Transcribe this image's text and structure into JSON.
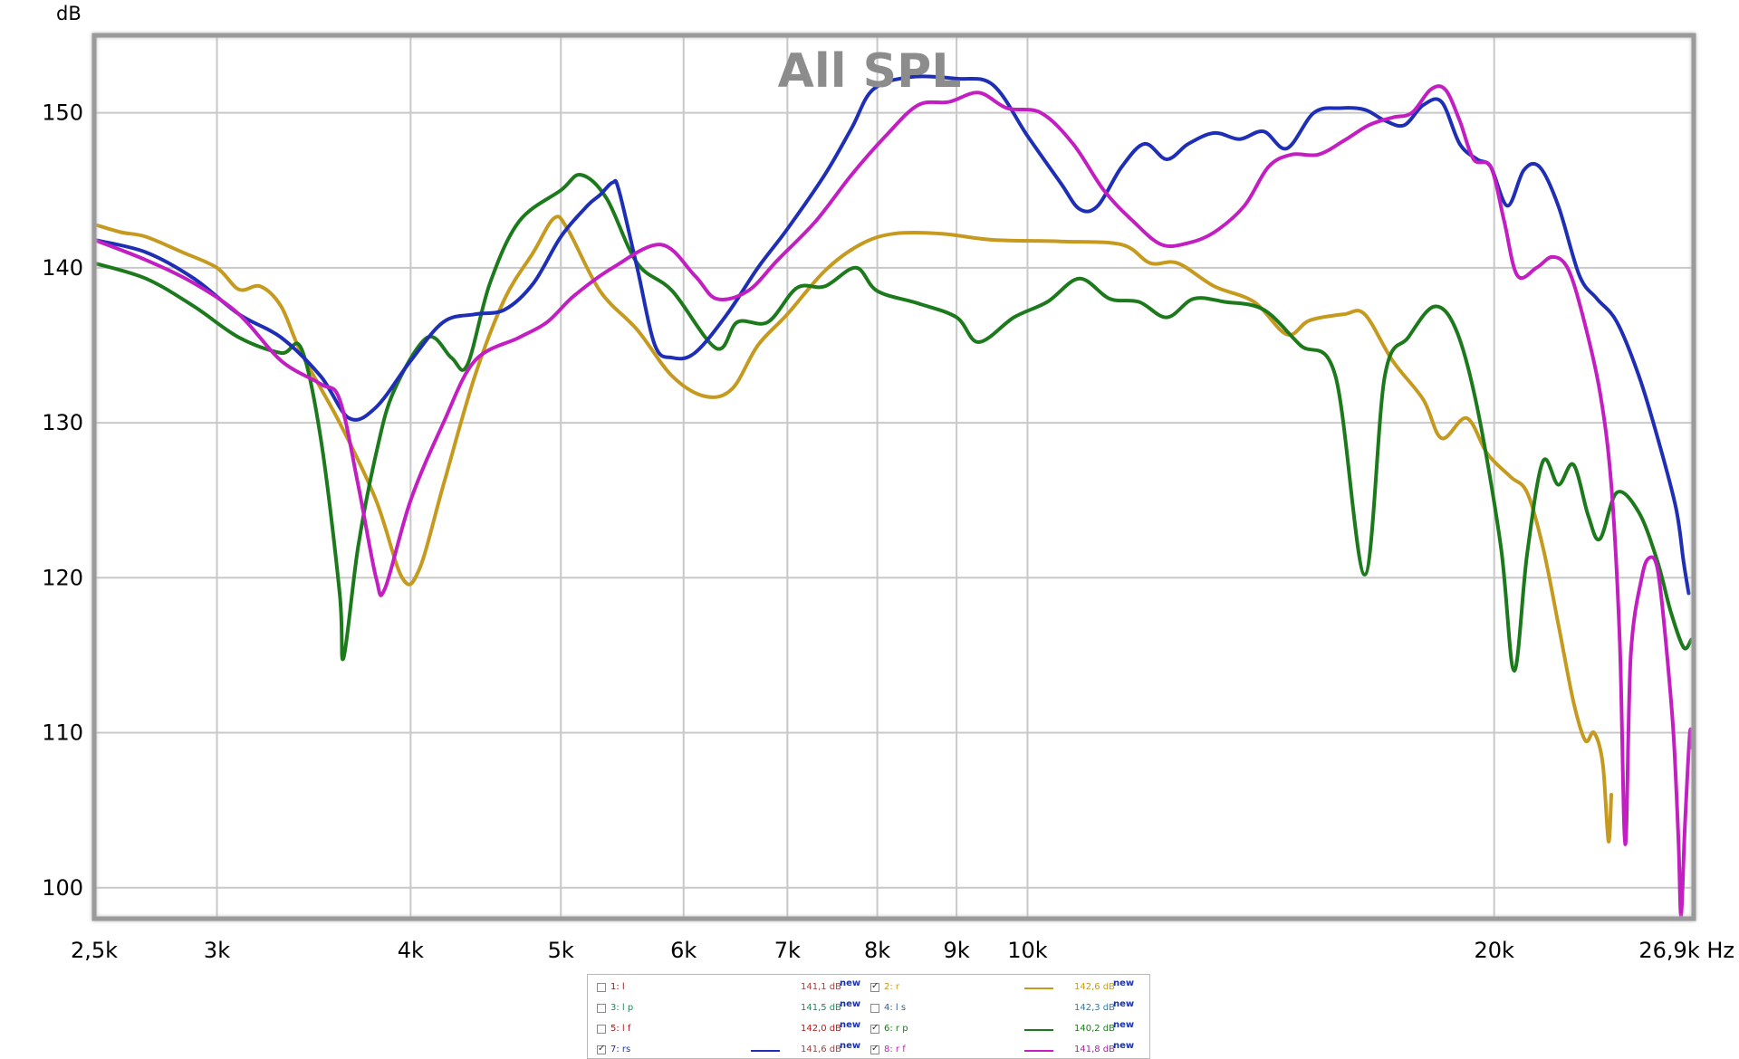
{
  "chart_data": {
    "type": "line",
    "title": "All SPL",
    "ylabel": "dB",
    "xlabel": "Hz",
    "x_scale": "log",
    "xlim": [
      2500,
      26900
    ],
    "ylim": [
      98,
      155
    ],
    "grid": true,
    "x_ticks": [
      {
        "value": 2500,
        "label": "2,5k"
      },
      {
        "value": 3000,
        "label": "3k"
      },
      {
        "value": 4000,
        "label": "4k"
      },
      {
        "value": 5000,
        "label": "5k"
      },
      {
        "value": 6000,
        "label": "6k"
      },
      {
        "value": 7000,
        "label": "7k"
      },
      {
        "value": 8000,
        "label": "8k"
      },
      {
        "value": 9000,
        "label": "9k"
      },
      {
        "value": 10000,
        "label": "10k"
      },
      {
        "value": 20000,
        "label": "20k"
      },
      {
        "value": 26900,
        "label": "26,9k Hz"
      }
    ],
    "y_ticks": [
      100,
      110,
      120,
      130,
      140,
      150
    ],
    "series": [
      {
        "name": "2: r",
        "color": "#c59a1e",
        "points": [
          [
            2500,
            142.8
          ],
          [
            2600,
            142.3
          ],
          [
            2700,
            142
          ],
          [
            2850,
            141
          ],
          [
            3000,
            140
          ],
          [
            3100,
            138.6
          ],
          [
            3200,
            138.8
          ],
          [
            3300,
            137.5
          ],
          [
            3400,
            134.5
          ],
          [
            3600,
            130
          ],
          [
            3800,
            125
          ],
          [
            3950,
            120
          ],
          [
            4050,
            120.5
          ],
          [
            4200,
            126
          ],
          [
            4400,
            133
          ],
          [
            4600,
            138
          ],
          [
            4800,
            141
          ],
          [
            4950,
            143.2
          ],
          [
            5050,
            142.5
          ],
          [
            5300,
            138.5
          ],
          [
            5600,
            136
          ],
          [
            5900,
            133
          ],
          [
            6200,
            131.7
          ],
          [
            6450,
            132.2
          ],
          [
            6700,
            135
          ],
          [
            7000,
            137
          ],
          [
            7400,
            139.8
          ],
          [
            7800,
            141.5
          ],
          [
            8200,
            142.2
          ],
          [
            8800,
            142.2
          ],
          [
            9500,
            141.8
          ],
          [
            10500,
            141.7
          ],
          [
            11500,
            141.5
          ],
          [
            12000,
            140.3
          ],
          [
            12500,
            140.3
          ],
          [
            13200,
            138.8
          ],
          [
            14000,
            137.8
          ],
          [
            14700,
            135.7
          ],
          [
            15200,
            136.6
          ],
          [
            16000,
            137
          ],
          [
            16500,
            137
          ],
          [
            17200,
            134
          ],
          [
            18000,
            131.5
          ],
          [
            18500,
            129
          ],
          [
            19200,
            130.3
          ],
          [
            19800,
            128
          ],
          [
            20500,
            126.5
          ],
          [
            21000,
            125.5
          ],
          [
            21500,
            122
          ],
          [
            22000,
            117
          ],
          [
            22500,
            112
          ],
          [
            22900,
            109.5
          ],
          [
            23200,
            110
          ],
          [
            23500,
            108
          ],
          [
            23700,
            103
          ],
          [
            23800,
            106
          ]
        ]
      },
      {
        "name": "6: r p",
        "color": "#1c7a1c",
        "points": [
          [
            2500,
            140.3
          ],
          [
            2700,
            139.3
          ],
          [
            2900,
            137.5
          ],
          [
            3100,
            135.5
          ],
          [
            3300,
            134.5
          ],
          [
            3400,
            134.8
          ],
          [
            3500,
            129
          ],
          [
            3600,
            119
          ],
          [
            3620,
            114.8
          ],
          [
            3700,
            122
          ],
          [
            3800,
            128
          ],
          [
            3900,
            132
          ],
          [
            4100,
            135.5
          ],
          [
            4250,
            134.2
          ],
          [
            4350,
            133.7
          ],
          [
            4500,
            139
          ],
          [
            4700,
            143
          ],
          [
            5000,
            145
          ],
          [
            5150,
            146
          ],
          [
            5350,
            144.5
          ],
          [
            5600,
            140.3
          ],
          [
            5900,
            138.5
          ],
          [
            6300,
            134.8
          ],
          [
            6500,
            136.5
          ],
          [
            6800,
            136.5
          ],
          [
            7100,
            138.7
          ],
          [
            7400,
            138.8
          ],
          [
            7750,
            140
          ],
          [
            8000,
            138.5
          ],
          [
            8500,
            137.7
          ],
          [
            9000,
            136.8
          ],
          [
            9300,
            135.2
          ],
          [
            9800,
            136.8
          ],
          [
            10300,
            137.8
          ],
          [
            10800,
            139.3
          ],
          [
            11300,
            138
          ],
          [
            11800,
            137.8
          ],
          [
            12300,
            136.8
          ],
          [
            12800,
            138
          ],
          [
            13400,
            137.8
          ],
          [
            14200,
            137.3
          ],
          [
            15000,
            135
          ],
          [
            15800,
            133
          ],
          [
            16500,
            120.2
          ],
          [
            17000,
            133
          ],
          [
            17600,
            135.5
          ],
          [
            18300,
            137.5
          ],
          [
            18900,
            136
          ],
          [
            19500,
            131
          ],
          [
            20200,
            122
          ],
          [
            20600,
            114
          ],
          [
            21000,
            121.5
          ],
          [
            21500,
            127.5
          ],
          [
            22000,
            126
          ],
          [
            22500,
            127.3
          ],
          [
            23000,
            124
          ],
          [
            23400,
            122.5
          ],
          [
            24000,
            125.5
          ],
          [
            24800,
            124.2
          ],
          [
            25500,
            121
          ],
          [
            26000,
            117.8
          ],
          [
            26500,
            115.5
          ],
          [
            26800,
            116
          ]
        ]
      },
      {
        "name": "7: rs",
        "color": "#1f2fb5",
        "points": [
          [
            2500,
            141.8
          ],
          [
            2700,
            141
          ],
          [
            2900,
            139.3
          ],
          [
            3100,
            137
          ],
          [
            3300,
            135.5
          ],
          [
            3500,
            133
          ],
          [
            3650,
            130.3
          ],
          [
            3800,
            131
          ],
          [
            4000,
            134
          ],
          [
            4200,
            136.5
          ],
          [
            4400,
            137
          ],
          [
            4600,
            137.3
          ],
          [
            4800,
            139
          ],
          [
            5000,
            142
          ],
          [
            5200,
            144
          ],
          [
            5300,
            144.7
          ],
          [
            5400,
            145.5
          ],
          [
            5450,
            145
          ],
          [
            5600,
            140
          ],
          [
            5750,
            135
          ],
          [
            5900,
            134.2
          ],
          [
            6100,
            134.5
          ],
          [
            6400,
            137
          ],
          [
            6700,
            140
          ],
          [
            7000,
            142.5
          ],
          [
            7400,
            146
          ],
          [
            7700,
            149
          ],
          [
            7950,
            151.5
          ],
          [
            8400,
            152.3
          ],
          [
            9000,
            152.2
          ],
          [
            9500,
            151.8
          ],
          [
            10000,
            148.5
          ],
          [
            10500,
            145.5
          ],
          [
            10800,
            143.8
          ],
          [
            11100,
            144
          ],
          [
            11500,
            146.5
          ],
          [
            11900,
            148
          ],
          [
            12300,
            147
          ],
          [
            12700,
            148
          ],
          [
            13200,
            148.7
          ],
          [
            13700,
            148.3
          ],
          [
            14200,
            148.8
          ],
          [
            14700,
            147.7
          ],
          [
            15300,
            150
          ],
          [
            15900,
            150.3
          ],
          [
            16500,
            150.2
          ],
          [
            17000,
            149.5
          ],
          [
            17500,
            149.2
          ],
          [
            18000,
            150.5
          ],
          [
            18500,
            150.7
          ],
          [
            19000,
            148
          ],
          [
            19500,
            147
          ],
          [
            19900,
            146.5
          ],
          [
            20400,
            144
          ],
          [
            20900,
            146.3
          ],
          [
            21400,
            146.5
          ],
          [
            22000,
            144
          ],
          [
            22700,
            139.5
          ],
          [
            23300,
            138
          ],
          [
            24000,
            136.5
          ],
          [
            24800,
            133
          ],
          [
            25500,
            129
          ],
          [
            26200,
            124.5
          ],
          [
            26500,
            121
          ],
          [
            26700,
            119
          ]
        ]
      },
      {
        "name": "8: r f",
        "color": "#c21ec2",
        "points": [
          [
            2500,
            141.8
          ],
          [
            2700,
            140.5
          ],
          [
            2900,
            139
          ],
          [
            3100,
            137
          ],
          [
            3300,
            134
          ],
          [
            3500,
            132.5
          ],
          [
            3600,
            131.5
          ],
          [
            3700,
            126
          ],
          [
            3800,
            120
          ],
          [
            3850,
            119.3
          ],
          [
            4000,
            125
          ],
          [
            4200,
            130
          ],
          [
            4400,
            134
          ],
          [
            4700,
            135.5
          ],
          [
            4900,
            136.5
          ],
          [
            5100,
            138.2
          ],
          [
            5400,
            140
          ],
          [
            5800,
            141.5
          ],
          [
            6100,
            139.5
          ],
          [
            6300,
            138
          ],
          [
            6600,
            138.5
          ],
          [
            6900,
            140.5
          ],
          [
            7300,
            143
          ],
          [
            7700,
            146
          ],
          [
            8100,
            148.5
          ],
          [
            8500,
            150.5
          ],
          [
            8900,
            150.7
          ],
          [
            9300,
            151.3
          ],
          [
            9700,
            150.3
          ],
          [
            10200,
            150
          ],
          [
            10700,
            148
          ],
          [
            11200,
            145
          ],
          [
            11700,
            143
          ],
          [
            12200,
            141.5
          ],
          [
            12700,
            141.6
          ],
          [
            13200,
            142.3
          ],
          [
            13800,
            144
          ],
          [
            14300,
            146.5
          ],
          [
            14800,
            147.3
          ],
          [
            15400,
            147.3
          ],
          [
            16000,
            148.2
          ],
          [
            16600,
            149.2
          ],
          [
            17200,
            149.7
          ],
          [
            17700,
            150
          ],
          [
            18200,
            151.5
          ],
          [
            18600,
            151.5
          ],
          [
            19000,
            149.5
          ],
          [
            19400,
            147
          ],
          [
            19900,
            146.5
          ],
          [
            20300,
            143
          ],
          [
            20700,
            139.5
          ],
          [
            21300,
            140
          ],
          [
            21800,
            140.7
          ],
          [
            22300,
            140
          ],
          [
            22800,
            137
          ],
          [
            23400,
            132
          ],
          [
            23800,
            126
          ],
          [
            24100,
            116
          ],
          [
            24300,
            102.8
          ],
          [
            24500,
            115
          ],
          [
            24900,
            120
          ],
          [
            25200,
            121.3
          ],
          [
            25500,
            120.5
          ],
          [
            25800,
            116
          ],
          [
            26100,
            110
          ],
          [
            26300,
            103
          ],
          [
            26400,
            98.2
          ],
          [
            26550,
            104
          ],
          [
            26750,
            110
          ],
          [
            26850,
            109
          ]
        ]
      }
    ]
  },
  "legend": {
    "entries": [
      {
        "label": "1: l",
        "checked": false,
        "color": "#8a1c1c",
        "value": "141,1 dB",
        "show_line": false,
        "value_color": "#a04040"
      },
      {
        "label": "2: r",
        "checked": true,
        "color": "#c59a1e",
        "value": "142,6 dB",
        "show_line": true,
        "value_color": "#c59a1e"
      },
      {
        "label": "3: l p",
        "checked": false,
        "color": "#1c8a5a",
        "value": "141,5 dB",
        "show_line": false,
        "value_color": "#1c8a5a"
      },
      {
        "label": "4: l s",
        "checked": false,
        "color": "#3a5a8a",
        "value": "142,3 dB",
        "show_line": false,
        "value_color": "#2a7ab5"
      },
      {
        "label": "5: l f",
        "checked": false,
        "color": "#a01c1c",
        "value": "142,0 dB",
        "show_line": false,
        "value_color": "#b01c1c"
      },
      {
        "label": "6: r p",
        "checked": true,
        "color": "#1c7a1c",
        "value": "140,2 dB",
        "show_line": true,
        "value_color": "#1c7a1c"
      },
      {
        "label": "7: rs",
        "checked": true,
        "color": "#1f2fb5",
        "value": "141,6 dB",
        "show_line": true,
        "value_color": "#a04040"
      },
      {
        "label": "8: r f",
        "checked": true,
        "color": "#c21ec2",
        "value": "141,8 dB",
        "show_line": true,
        "value_color": "#a81ea8"
      }
    ],
    "new_label": "new"
  }
}
